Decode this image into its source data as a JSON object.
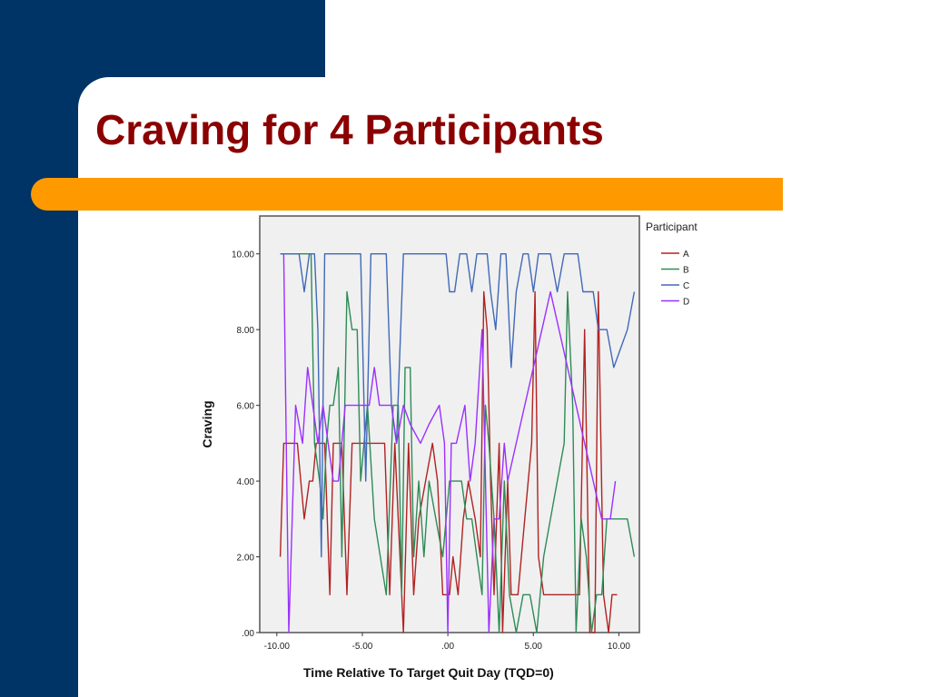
{
  "slide": {
    "title": "Craving for 4 Participants",
    "colors": {
      "navy": "#003366",
      "orange": "#ff9900",
      "title": "#8b0000"
    }
  },
  "chart_data": {
    "type": "line",
    "title": "",
    "xlabel": "Time Relative To Target Quit Day (TQD=0)",
    "ylabel": "Craving",
    "xlim": [
      -11.0,
      11.2
    ],
    "ylim": [
      0,
      11.0
    ],
    "xticks": [
      -10,
      -5,
      0,
      5,
      10
    ],
    "xtick_labels": [
      "-10.00",
      "-5.00",
      ".00",
      "5.00",
      "10.00"
    ],
    "yticks": [
      0,
      2,
      4,
      6,
      8,
      10
    ],
    "ytick_labels": [
      ".00",
      "2.00",
      "4.00",
      "6.00",
      "8.00",
      "10.00"
    ],
    "grid": false,
    "plot_background": "#f0f0f0",
    "legend": {
      "title": "Participant",
      "position": "right"
    },
    "series": [
      {
        "name": "A",
        "color": "#b22222",
        "points": [
          [
            -9.8,
            2
          ],
          [
            -9.6,
            5
          ],
          [
            -9.2,
            5
          ],
          [
            -8.8,
            5
          ],
          [
            -8.4,
            3
          ],
          [
            -8.1,
            4
          ],
          [
            -7.9,
            4
          ],
          [
            -7.7,
            5
          ],
          [
            -7.5,
            5
          ],
          [
            -7.2,
            5
          ],
          [
            -6.9,
            1
          ],
          [
            -6.7,
            5
          ],
          [
            -6.4,
            5
          ],
          [
            -6.2,
            5
          ],
          [
            -5.9,
            1
          ],
          [
            -5.6,
            5
          ],
          [
            -5.3,
            5
          ],
          [
            -4.9,
            5
          ],
          [
            -4.6,
            5
          ],
          [
            -4.1,
            5
          ],
          [
            -3.7,
            5
          ],
          [
            -3.4,
            1
          ],
          [
            -3.1,
            5
          ],
          [
            -2.8,
            2
          ],
          [
            -2.6,
            0
          ],
          [
            -2.3,
            5
          ],
          [
            -2.0,
            1
          ],
          [
            -1.7,
            3
          ],
          [
            -1.3,
            4
          ],
          [
            -0.9,
            5
          ],
          [
            -0.6,
            4
          ],
          [
            -0.3,
            1
          ],
          [
            0.1,
            1
          ],
          [
            0.3,
            2
          ],
          [
            0.6,
            1
          ],
          [
            0.9,
            3
          ],
          [
            1.2,
            4
          ],
          [
            1.6,
            3
          ],
          [
            1.9,
            2
          ],
          [
            2.1,
            9
          ],
          [
            2.3,
            8
          ],
          [
            2.5,
            4
          ],
          [
            2.7,
            1
          ],
          [
            3.0,
            5
          ],
          [
            3.2,
            0
          ],
          [
            3.5,
            4
          ],
          [
            3.7,
            1
          ],
          [
            4.1,
            1
          ],
          [
            4.5,
            3
          ],
          [
            4.9,
            5
          ],
          [
            5.1,
            9
          ],
          [
            5.3,
            2
          ],
          [
            5.6,
            1
          ],
          [
            6.0,
            1
          ],
          [
            6.4,
            1
          ],
          [
            6.8,
            1
          ],
          [
            7.1,
            1
          ],
          [
            7.4,
            1
          ],
          [
            7.7,
            1
          ],
          [
            8.0,
            8
          ],
          [
            8.3,
            0
          ],
          [
            8.6,
            0
          ],
          [
            8.8,
            9
          ],
          [
            9.1,
            1
          ],
          [
            9.4,
            0
          ],
          [
            9.6,
            1
          ],
          [
            9.9,
            1
          ]
        ]
      },
      {
        "name": "B",
        "color": "#2e8b57",
        "points": [
          [
            -9.8,
            10
          ],
          [
            -9.5,
            10
          ],
          [
            -9.1,
            10
          ],
          [
            -8.6,
            10
          ],
          [
            -8.3,
            10
          ],
          [
            -8.0,
            10
          ],
          [
            -7.8,
            5
          ],
          [
            -7.5,
            4
          ],
          [
            -7.3,
            3
          ],
          [
            -7.1,
            5
          ],
          [
            -6.9,
            6
          ],
          [
            -6.7,
            6
          ],
          [
            -6.4,
            7
          ],
          [
            -6.2,
            2
          ],
          [
            -5.9,
            9
          ],
          [
            -5.6,
            8
          ],
          [
            -5.3,
            8
          ],
          [
            -5.1,
            4
          ],
          [
            -4.7,
            6
          ],
          [
            -4.3,
            3
          ],
          [
            -3.6,
            1
          ],
          [
            -3.2,
            6
          ],
          [
            -2.9,
            6
          ],
          [
            -2.7,
            1
          ],
          [
            -2.5,
            7
          ],
          [
            -2.2,
            7
          ],
          [
            -2.0,
            2
          ],
          [
            -1.7,
            4
          ],
          [
            -1.4,
            2
          ],
          [
            -1.1,
            4
          ],
          [
            -0.7,
            3
          ],
          [
            -0.3,
            2
          ],
          [
            0.1,
            4
          ],
          [
            0.4,
            4
          ],
          [
            0.8,
            4
          ],
          [
            1.1,
            3
          ],
          [
            1.4,
            3
          ],
          [
            1.7,
            2
          ],
          [
            2.0,
            1
          ],
          [
            2.2,
            6
          ],
          [
            2.4,
            5
          ],
          [
            2.7,
            3
          ],
          [
            3.0,
            0
          ],
          [
            3.3,
            4
          ],
          [
            3.6,
            1
          ],
          [
            4.0,
            0
          ],
          [
            4.4,
            1
          ],
          [
            4.8,
            1
          ],
          [
            5.2,
            0
          ],
          [
            5.6,
            2
          ],
          [
            6.0,
            3
          ],
          [
            6.4,
            4
          ],
          [
            6.8,
            5
          ],
          [
            7.0,
            9
          ],
          [
            7.3,
            6
          ],
          [
            7.5,
            0
          ],
          [
            7.8,
            3
          ],
          [
            8.1,
            2
          ],
          [
            8.4,
            0
          ],
          [
            8.7,
            1
          ],
          [
            9.0,
            1
          ],
          [
            9.3,
            3
          ],
          [
            9.7,
            3
          ],
          [
            10.1,
            3
          ],
          [
            10.5,
            3
          ],
          [
            10.9,
            2
          ]
        ]
      },
      {
        "name": "C",
        "color": "#4169b8",
        "points": [
          [
            -9.8,
            10
          ],
          [
            -9.3,
            10
          ],
          [
            -8.7,
            10
          ],
          [
            -8.4,
            9
          ],
          [
            -8.1,
            10
          ],
          [
            -7.8,
            10
          ],
          [
            -7.6,
            8
          ],
          [
            -7.4,
            2
          ],
          [
            -7.2,
            10
          ],
          [
            -6.9,
            10
          ],
          [
            -6.6,
            10
          ],
          [
            -6.0,
            10
          ],
          [
            -5.5,
            10
          ],
          [
            -5.1,
            10
          ],
          [
            -4.8,
            4
          ],
          [
            -4.5,
            10
          ],
          [
            -4.1,
            10
          ],
          [
            -3.6,
            10
          ],
          [
            -3.3,
            6
          ],
          [
            -3.0,
            5
          ],
          [
            -2.6,
            10
          ],
          [
            -2.2,
            10
          ],
          [
            -1.6,
            10
          ],
          [
            -1.0,
            10
          ],
          [
            -0.5,
            10
          ],
          [
            -0.1,
            10
          ],
          [
            0.1,
            9
          ],
          [
            0.4,
            9
          ],
          [
            0.7,
            10
          ],
          [
            1.1,
            10
          ],
          [
            1.4,
            9
          ],
          [
            1.7,
            10
          ],
          [
            2.0,
            10
          ],
          [
            2.3,
            10
          ],
          [
            2.5,
            9
          ],
          [
            2.8,
            8
          ],
          [
            3.1,
            10
          ],
          [
            3.4,
            10
          ],
          [
            3.7,
            7
          ],
          [
            4.0,
            9
          ],
          [
            4.4,
            10
          ],
          [
            4.7,
            10
          ],
          [
            5.0,
            9
          ],
          [
            5.3,
            10
          ],
          [
            5.7,
            10
          ],
          [
            6.0,
            10
          ],
          [
            6.4,
            9
          ],
          [
            6.8,
            10
          ],
          [
            7.2,
            10
          ],
          [
            7.6,
            10
          ],
          [
            7.9,
            9
          ],
          [
            8.2,
            9
          ],
          [
            8.5,
            9
          ],
          [
            8.8,
            8
          ],
          [
            9.0,
            8
          ],
          [
            9.3,
            8
          ],
          [
            9.7,
            7
          ],
          [
            10.1,
            7.5
          ],
          [
            10.5,
            8
          ],
          [
            10.9,
            9
          ]
        ]
      },
      {
        "name": "D",
        "color": "#9b30ff",
        "points": [
          [
            -9.6,
            10
          ],
          [
            -9.3,
            0
          ],
          [
            -8.9,
            6
          ],
          [
            -8.5,
            5
          ],
          [
            -8.2,
            7
          ],
          [
            -7.9,
            6
          ],
          [
            -7.6,
            5
          ],
          [
            -7.3,
            6
          ],
          [
            -7.0,
            5
          ],
          [
            -6.7,
            4
          ],
          [
            -6.4,
            4
          ],
          [
            -6.0,
            6
          ],
          [
            -5.5,
            6
          ],
          [
            -5.0,
            6
          ],
          [
            -4.6,
            6
          ],
          [
            -4.3,
            7
          ],
          [
            -4.0,
            6
          ],
          [
            -3.7,
            6
          ],
          [
            -3.3,
            6
          ],
          [
            -3.0,
            5
          ],
          [
            -2.6,
            6
          ],
          [
            -2.2,
            5.5
          ],
          [
            -1.6,
            5
          ],
          [
            -1.1,
            5.5
          ],
          [
            -0.5,
            6
          ],
          [
            -0.2,
            5
          ],
          [
            0.0,
            0
          ],
          [
            0.2,
            5
          ],
          [
            0.5,
            5
          ],
          [
            1.0,
            6
          ],
          [
            1.3,
            4
          ],
          [
            1.6,
            5
          ],
          [
            2.0,
            8
          ],
          [
            2.4,
            0
          ],
          [
            2.7,
            3
          ],
          [
            3.0,
            3
          ],
          [
            3.3,
            5
          ],
          [
            3.5,
            4
          ],
          [
            4.0,
            5
          ],
          [
            4.5,
            6
          ],
          [
            5.0,
            7
          ],
          [
            5.5,
            8
          ],
          [
            6.0,
            9
          ],
          [
            6.5,
            8
          ],
          [
            7.0,
            7
          ],
          [
            7.5,
            6
          ],
          [
            8.0,
            5
          ],
          [
            8.5,
            4
          ],
          [
            9.0,
            3
          ],
          [
            9.5,
            3
          ],
          [
            9.8,
            4
          ]
        ]
      }
    ]
  }
}
